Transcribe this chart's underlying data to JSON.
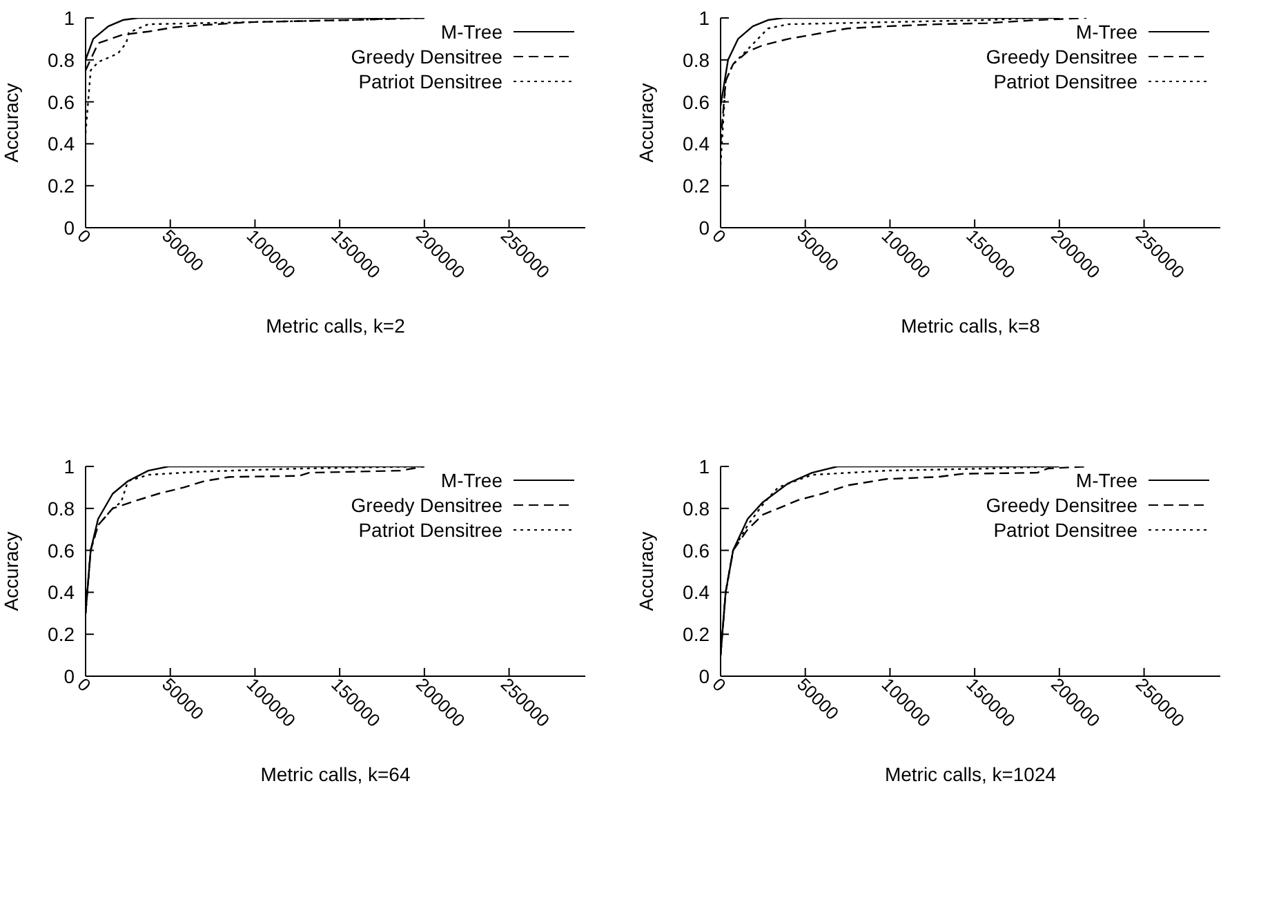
{
  "chart_data": [
    {
      "type": "line",
      "xlabel": "Metric calls, k=2",
      "ylabel": "Accuracy",
      "xlim": [
        0,
        295000
      ],
      "xticks": [
        0,
        50000,
        100000,
        150000,
        200000,
        250000
      ],
      "ylim": [
        0,
        1
      ],
      "yticks": [
        0,
        0.2,
        0.4,
        0.6,
        0.8,
        1
      ],
      "legend": "top right",
      "series": [
        {
          "name": "M-Tree",
          "color": "#000000",
          "line_style": "solid",
          "x": [
            0,
            4500,
            13400,
            22000,
            31000,
            200000
          ],
          "values": [
            0.8,
            0.9,
            0.96,
            0.99,
            1,
            1
          ]
        },
        {
          "name": "Greedy Densitree",
          "color": "#000000",
          "line_style": "dashed",
          "x": [
            0,
            7500,
            22000,
            37000,
            52000,
            67000,
            97000,
            156000,
            200000
          ],
          "values": [
            0.75,
            0.88,
            0.92,
            0.935,
            0.955,
            0.965,
            0.98,
            0.99,
            1
          ]
        },
        {
          "name": "Patriot Densitree",
          "color": "#000000",
          "line_style": "dotted",
          "x": [
            0,
            3000,
            7500,
            19000,
            24000,
            25500,
            37000,
            67000,
            156000,
            200000
          ],
          "values": [
            0.45,
            0.75,
            0.79,
            0.83,
            0.88,
            0.93,
            0.97,
            0.975,
            0.99,
            1
          ]
        }
      ]
    },
    {
      "type": "line",
      "xlabel": "Metric calls, k=8",
      "ylabel": "Accuracy",
      "xlim": [
        0,
        295000
      ],
      "xticks": [
        0,
        50000,
        100000,
        150000,
        200000,
        250000
      ],
      "ylim": [
        0,
        1
      ],
      "yticks": [
        0,
        0.2,
        0.4,
        0.6,
        0.8,
        1
      ],
      "legend": "top right",
      "series": [
        {
          "name": "M-Tree",
          "color": "#000000",
          "line_style": "solid",
          "x": [
            0,
            4400,
            10300,
            19000,
            28000,
            37000,
            200000
          ],
          "values": [
            0.58,
            0.8,
            0.9,
            0.96,
            0.99,
            1,
            1
          ]
        },
        {
          "name": "Greedy Densitree",
          "color": "#000000",
          "line_style": "dashed",
          "x": [
            0,
            3000,
            7400,
            16000,
            25000,
            40000,
            54000,
            75000,
            98000,
            128000,
            157000,
            187000,
            216000
          ],
          "values": [
            0.4,
            0.7,
            0.78,
            0.84,
            0.87,
            0.9,
            0.92,
            0.95,
            0.96,
            0.97,
            0.975,
            0.99,
            1
          ]
        },
        {
          "name": "Patriot Densitree",
          "color": "#000000",
          "line_style": "dotted",
          "x": [
            0,
            3000,
            7400,
            16000,
            22000,
            28000,
            40000,
            98000,
            157000,
            187000
          ],
          "values": [
            0.3,
            0.7,
            0.78,
            0.85,
            0.9,
            0.95,
            0.97,
            0.98,
            0.99,
            1
          ]
        }
      ]
    },
    {
      "type": "line",
      "xlabel": "Metric calls, k=64",
      "ylabel": "Accuracy",
      "xlim": [
        0,
        295000
      ],
      "xticks": [
        0,
        50000,
        100000,
        150000,
        200000,
        250000
      ],
      "ylim": [
        0,
        1
      ],
      "yticks": [
        0,
        0.2,
        0.4,
        0.6,
        0.8,
        1
      ],
      "legend": "top right",
      "series": [
        {
          "name": "M-Tree",
          "color": "#000000",
          "line_style": "solid",
          "x": [
            0,
            3000,
            7400,
            16000,
            25000,
            37000,
            49000,
            200000
          ],
          "values": [
            0.3,
            0.6,
            0.75,
            0.87,
            0.93,
            0.98,
            1,
            1
          ]
        },
        {
          "name": "Greedy Densitree",
          "color": "#000000",
          "line_style": "dashed",
          "x": [
            0,
            3000,
            7400,
            16000,
            31000,
            43000,
            58000,
            70000,
            85000,
            126000,
            132000,
            186000,
            200000
          ],
          "values": [
            0.3,
            0.6,
            0.72,
            0.8,
            0.84,
            0.87,
            0.9,
            0.93,
            0.95,
            0.955,
            0.97,
            0.98,
            1
          ]
        },
        {
          "name": "Patriot Densitree",
          "color": "#000000",
          "line_style": "dotted",
          "x": [
            0,
            3000,
            7400,
            16000,
            21000,
            25000,
            37000,
            67000,
            126000,
            200000
          ],
          "values": [
            0.3,
            0.6,
            0.72,
            0.8,
            0.83,
            0.93,
            0.96,
            0.975,
            0.99,
            1
          ]
        }
      ]
    },
    {
      "type": "line",
      "xlabel": "Metric calls, k=1024",
      "ylabel": "Accuracy",
      "xlim": [
        0,
        295000
      ],
      "xticks": [
        0,
        50000,
        100000,
        150000,
        200000,
        250000
      ],
      "ylim": [
        0,
        1
      ],
      "yticks": [
        0,
        0.2,
        0.4,
        0.6,
        0.8,
        1
      ],
      "legend": "top right",
      "series": [
        {
          "name": "M-Tree",
          "color": "#000000",
          "line_style": "solid",
          "x": [
            0,
            3000,
            7400,
            16000,
            25000,
            40000,
            54000,
            69000,
            200000
          ],
          "values": [
            0.1,
            0.4,
            0.6,
            0.75,
            0.83,
            0.92,
            0.97,
            1,
            1
          ]
        },
        {
          "name": "Greedy Densitree",
          "color": "#000000",
          "line_style": "dashed",
          "x": [
            0,
            3000,
            7400,
            16000,
            25000,
            34000,
            46000,
            60000,
            75000,
            98000,
            128000,
            143000,
            187000,
            193000,
            216000
          ],
          "values": [
            0.1,
            0.4,
            0.6,
            0.7,
            0.77,
            0.8,
            0.84,
            0.87,
            0.91,
            0.94,
            0.95,
            0.965,
            0.97,
            0.99,
            1
          ]
        },
        {
          "name": "Patriot Densitree",
          "color": "#000000",
          "line_style": "dotted",
          "x": [
            0,
            3000,
            7400,
            16000,
            26000,
            34000,
            54000,
            98000,
            157000,
            200000
          ],
          "values": [
            0.1,
            0.4,
            0.6,
            0.72,
            0.83,
            0.9,
            0.96,
            0.98,
            0.99,
            1
          ]
        }
      ]
    }
  ]
}
